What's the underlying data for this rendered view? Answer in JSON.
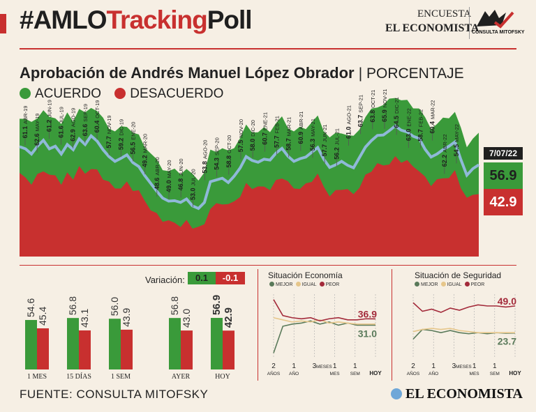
{
  "header": {
    "title_part1": "#AMLO",
    "title_part2": "Tracking",
    "title_part3": "Poll",
    "encuesta": "ENCUESTA",
    "publisher": "EL ECONOMISTA",
    "logo_caption": "CONSULTA MITOFSKY"
  },
  "subtitle": {
    "main": "Aprobación de Andrés Manuel López Obrador",
    "unit": "| PORCENTAJE"
  },
  "legend": {
    "acuerdo": "ACUERDO",
    "desacuerdo": "DESACUERDO"
  },
  "colors": {
    "green": "#3a9a3a",
    "red": "#c8302f",
    "blue": "#8fb9d8",
    "dark": "#1f1f1f",
    "igual": "#e6c68a",
    "mejor": "#5a7a5a",
    "peor": "#a32a3a"
  },
  "latest": {
    "date": "7/07/22",
    "acuerdo": "56.9",
    "desacuerdo": "42.9"
  },
  "chart_data": [
    {
      "type": "area",
      "title": "Aprobación de Andrés Manuel López Obrador",
      "ylabel": "Porcentaje",
      "ylim": [
        0,
        100
      ],
      "series_names": [
        "Acuerdo",
        "Desacuerdo"
      ],
      "annotations": [
        {
          "value": "61.1",
          "date": "ABR-19",
          "dir": "up"
        },
        {
          "value": "62.6",
          "date": "MAY-19",
          "dir": "up"
        },
        {
          "value": "61.2",
          "date": "JUN-19",
          "dir": "up"
        },
        {
          "value": "61.6",
          "date": "JUL-19",
          "dir": "up"
        },
        {
          "value": "62.9",
          "date": "AGO-19",
          "dir": "up"
        },
        {
          "value": "63.6",
          "date": "SEP-19",
          "dir": "up"
        },
        {
          "value": "60.4",
          "date": "OCT-19",
          "dir": "up"
        },
        {
          "value": "57.7",
          "date": "NOV-19",
          "dir": "up"
        },
        {
          "value": "59.2",
          "date": "DIC-19",
          "dir": "up"
        },
        {
          "value": "56.5",
          "date": "ENE-20",
          "dir": "up"
        },
        {
          "value": "49.2",
          "date": "MAR-20",
          "dir": "up"
        },
        {
          "value": "48.6",
          "date": "ABR-20",
          "dir": "up"
        },
        {
          "value": "49.0",
          "date": "MAY-20",
          "dir": "up"
        },
        {
          "value": "46.8",
          "date": "JUN-20",
          "dir": "up"
        },
        {
          "value": "53.0",
          "date": "JUL-20",
          "dir": "up"
        },
        {
          "value": "53.8",
          "date": "AGO-20",
          "dir": "up"
        },
        {
          "value": "54.3",
          "date": "SEP-20",
          "dir": "up"
        },
        {
          "value": "58.8",
          "date": "OCT-20",
          "dir": "up"
        },
        {
          "value": "57.5",
          "date": "NOV-20",
          "dir": "up"
        },
        {
          "value": "58.0",
          "date": "DIC-20",
          "dir": "up"
        },
        {
          "value": "60.7",
          "date": "ENE-21",
          "dir": "up"
        },
        {
          "value": "57.7",
          "date": "FEB-21",
          "dir": "up"
        },
        {
          "value": "58.7",
          "date": "MAR-21",
          "dir": "up"
        },
        {
          "value": "60.9",
          "date": "ABR-21",
          "dir": "up"
        },
        {
          "value": "56.3",
          "date": "MAY-21",
          "dir": "up"
        },
        {
          "value": "57.7",
          "date": "JUN-21",
          "dir": "up"
        },
        {
          "value": "56.2",
          "date": "JUL-21",
          "dir": "up"
        },
        {
          "value": "61.0",
          "date": "AGO-21",
          "dir": "up"
        },
        {
          "value": "63.7",
          "date": "SEP-21",
          "dir": "up"
        },
        {
          "value": "63.8",
          "date": "OCT-21",
          "dir": "up"
        },
        {
          "value": "65.9",
          "date": "NOV-21",
          "dir": "up"
        },
        {
          "value": "64.5",
          "date": "DIC-21",
          "dir": "up"
        },
        {
          "value": "63.0",
          "date": "ENE-22",
          "dir": "up"
        },
        {
          "value": "58.7",
          "date": "FEB-22",
          "dir": "up"
        },
        {
          "value": "60.4",
          "date": "MAR-22",
          "dir": "up"
        },
        {
          "value": "62.2",
          "date": "ABR-22",
          "dir": "up"
        },
        {
          "value": "54.5",
          "date": "MAY-22",
          "dir": "up"
        }
      ],
      "acuerdo_series": [
        61.1,
        60.6,
        59.4,
        61.2,
        62.6,
        60.6,
        61.2,
        59.4,
        61.6,
        60.4,
        62.9,
        61.6,
        63.6,
        62.4,
        60.4,
        58.8,
        57.7,
        58.4,
        59.2,
        57.4,
        56.5,
        54.4,
        52.6,
        50.8,
        49.2,
        48.5,
        48.6,
        48.2,
        49.0,
        47.4,
        46.8,
        48.2,
        53.0,
        53.4,
        53.8,
        52.8,
        54.3,
        56.2,
        58.8,
        57.9,
        57.5,
        58.2,
        58.0,
        59.6,
        60.7,
        58.9,
        57.7,
        58.3,
        58.7,
        59.8,
        60.9,
        58.2,
        56.3,
        56.9,
        57.7,
        56.8,
        56.2,
        58.6,
        61.0,
        62.5,
        63.7,
        63.8,
        64.8,
        65.9,
        64.9,
        64.5,
        63.5,
        63.0,
        60.5,
        58.7,
        59.4,
        60.4,
        61.2,
        62.2,
        58.1,
        54.5,
        56.0,
        56.9
      ],
      "desacuerdo_series": [
        38.5,
        39.0,
        40.4,
        38.4,
        37.0,
        39.0,
        38.4,
        40.2,
        38.0,
        39.2,
        36.7,
        38.0,
        36.0,
        37.2,
        39.2,
        40.8,
        41.9,
        41.2,
        40.4,
        42.2,
        43.1,
        45.2,
        47.0,
        48.8,
        50.4,
        51.1,
        51.0,
        51.4,
        50.6,
        52.2,
        52.8,
        51.4,
        46.6,
        46.2,
        45.8,
        46.8,
        45.3,
        43.4,
        40.8,
        41.7,
        42.1,
        41.4,
        41.6,
        40.0,
        38.9,
        40.7,
        41.9,
        41.3,
        40.9,
        39.8,
        38.7,
        41.4,
        43.3,
        42.7,
        41.9,
        42.8,
        43.4,
        41.0,
        38.6,
        37.1,
        35.9,
        35.8,
        34.8,
        33.7,
        34.7,
        35.1,
        36.1,
        36.6,
        39.1,
        40.9,
        40.2,
        39.2,
        38.4,
        37.4,
        41.5,
        45.1,
        43.6,
        42.9
      ]
    },
    {
      "type": "bar",
      "title": "Variación",
      "variation": [
        "0.1",
        "-0.1"
      ],
      "categories": [
        "1 MES",
        "15 DÍAS",
        "1 SEM",
        "AYER",
        "HOY"
      ],
      "series": [
        {
          "name": "Acuerdo",
          "values": [
            54.6,
            56.8,
            56.0,
            56.8,
            56.9
          ],
          "labels": [
            "54.6",
            "56.8",
            "56.0",
            "56.8",
            "56.9"
          ]
        },
        {
          "name": "Desacuerdo",
          "values": [
            45.4,
            43.1,
            43.9,
            43.0,
            42.9
          ],
          "labels": [
            "45.4",
            "43.1",
            "43.9",
            "43.0",
            "42.9"
          ]
        }
      ]
    },
    {
      "type": "line",
      "title": "Situación Economía",
      "legend": [
        "MEJOR",
        "IGUAL",
        "PEOR"
      ],
      "x_labels": [
        [
          "2",
          "AÑOS"
        ],
        [
          "1",
          "AÑO"
        ],
        [
          "3",
          "MESES"
        ],
        [
          "1",
          "MES"
        ],
        [
          "1",
          "SEM"
        ],
        [
          "",
          "HOY"
        ]
      ],
      "series": [
        {
          "name": "MEJOR",
          "values": [
            5,
            30,
            32,
            33,
            35,
            32,
            34,
            31,
            33,
            31,
            31,
            31
          ]
        },
        {
          "name": "IGUAL",
          "values": [
            38,
            36,
            34,
            35,
            34,
            36,
            33,
            34,
            33,
            32,
            32,
            32
          ]
        },
        {
          "name": "PEOR",
          "values": [
            55,
            40,
            38,
            37,
            38,
            35,
            37,
            38,
            36,
            36,
            37,
            36.9
          ]
        }
      ],
      "end_labels": [
        "36.9",
        "31.0"
      ],
      "ylim": [
        0,
        60
      ]
    },
    {
      "type": "line",
      "title": "Situación de Seguridad",
      "legend": [
        "MEJOR",
        "IGUAL",
        "PEOR"
      ],
      "x_labels": [
        [
          "2",
          "AÑOS"
        ],
        [
          "1",
          "AÑO"
        ],
        [
          "3",
          "MESES"
        ],
        [
          "1",
          "MES"
        ],
        [
          "1",
          "SEM"
        ],
        [
          "",
          "HOY"
        ]
      ],
      "series": [
        {
          "name": "MEJOR",
          "values": [
            18,
            27,
            26,
            24,
            26,
            24,
            23,
            24,
            23,
            24,
            23.5,
            23.7
          ]
        },
        {
          "name": "IGUAL",
          "values": [
            25,
            27,
            28,
            27,
            28,
            26,
            25,
            24,
            24,
            24,
            24,
            24
          ]
        },
        {
          "name": "PEOR",
          "values": [
            52,
            44,
            46,
            43,
            47,
            45,
            48,
            50,
            49,
            49,
            48,
            49.0
          ]
        }
      ],
      "end_labels": [
        "49.0",
        "23.7"
      ],
      "ylim": [
        0,
        60
      ]
    }
  ],
  "footer": {
    "source": "FUENTE: CONSULTA MITOFSKY",
    "logo": "EL ECONOMISTA"
  }
}
